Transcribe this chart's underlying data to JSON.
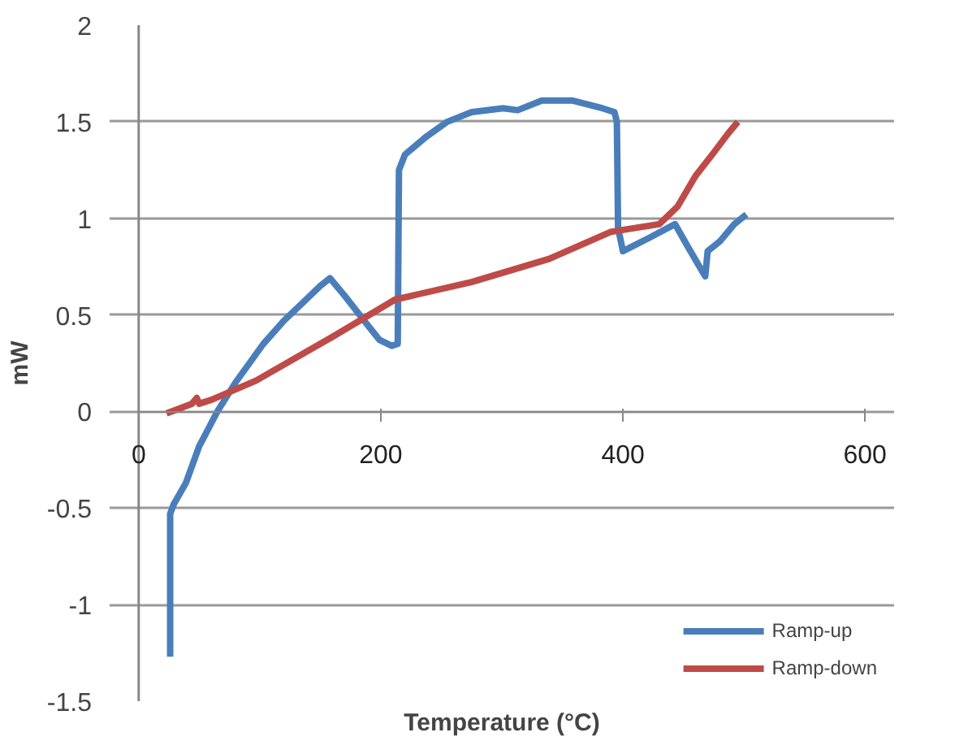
{
  "chart_data": {
    "type": "line",
    "xlabel": "Temperature (°C)",
    "ylabel": "mW",
    "xlim": [
      0,
      600
    ],
    "xticks": [
      0,
      200,
      400,
      600
    ],
    "ylim": [
      -1.5,
      2
    ],
    "yticks": [
      -1.5,
      -1,
      -0.5,
      0,
      0.5,
      1,
      1.5,
      2
    ],
    "grid": "y",
    "legend": "bottom right",
    "line_style": "solid",
    "marker": "none",
    "series": [
      {
        "name": "Ramp-up",
        "color": "#4a7ebb",
        "x": [
          26,
          26,
          29,
          39,
          50,
          65,
          80,
          103,
          120,
          135,
          150,
          158,
          170,
          180,
          190,
          199,
          209,
          214,
          215,
          220,
          237,
          255,
          275,
          301,
          313,
          333,
          358,
          383,
          393,
          395,
          396,
          400,
          422,
          443,
          453,
          466,
          468,
          470,
          480,
          492,
          502
        ],
        "values": [
          -1.27,
          -0.53,
          -0.48,
          -0.37,
          -0.18,
          0,
          0.15,
          0.35,
          0.47,
          0.56,
          0.65,
          0.69,
          0.6,
          0.52,
          0.44,
          0.37,
          0.34,
          0.35,
          1.25,
          1.33,
          1.42,
          1.5,
          1.55,
          1.57,
          1.56,
          1.61,
          1.61,
          1.57,
          1.55,
          1.5,
          0.95,
          0.83,
          0.9,
          0.97,
          0.86,
          0.72,
          0.7,
          0.83,
          0.88,
          0.97,
          1.02
        ]
      },
      {
        "name": "Ramp-down",
        "color": "#be4b48",
        "x": [
          23,
          40,
          44,
          48,
          50,
          60,
          97,
          161,
          212,
          275,
          339,
          390,
          430,
          445,
          460,
          475,
          487,
          495
        ],
        "values": [
          -0.01,
          0.03,
          0.04,
          0.07,
          0.04,
          0.06,
          0.16,
          0.39,
          0.58,
          0.67,
          0.79,
          0.93,
          0.97,
          1.06,
          1.22,
          1.34,
          1.44,
          1.5
        ]
      }
    ]
  }
}
